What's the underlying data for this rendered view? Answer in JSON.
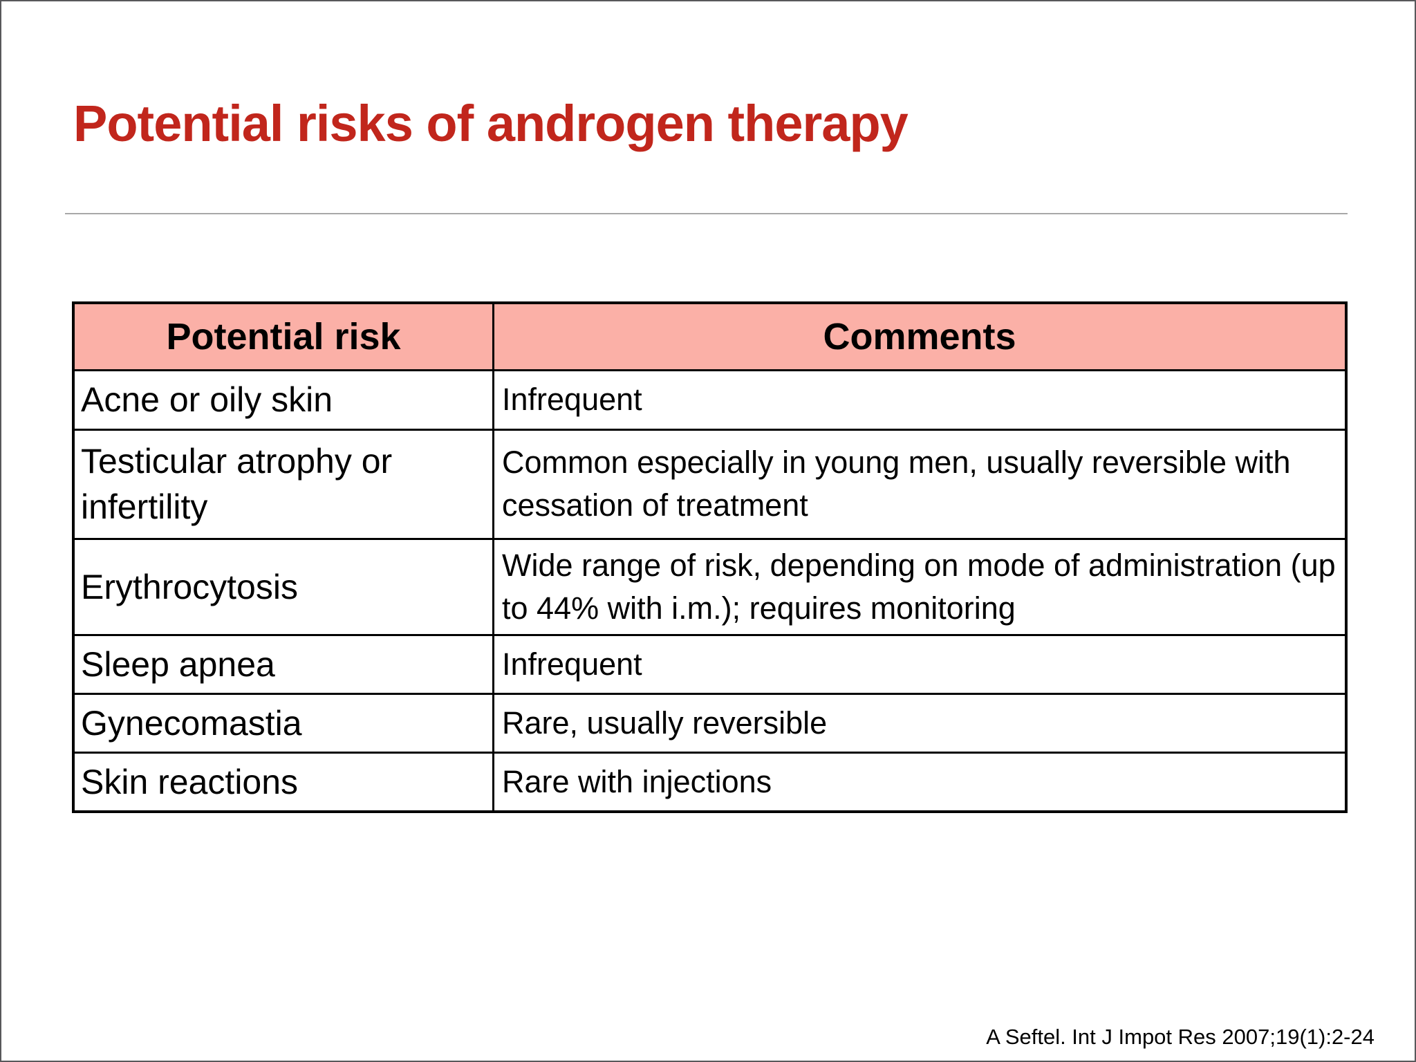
{
  "page": {
    "title": "Potential risks of androgen therapy",
    "citation": "A Seftel. Int J Impot Res 2007;19(1):2-24"
  },
  "colors": {
    "title_red": "#c1261c",
    "header_pink": "#fbb0a7",
    "table_border": "#000000",
    "rule_gray": "#a8a8a8",
    "page_border_gray": "#58585a"
  },
  "table": {
    "headers": [
      "Potential risk",
      "Comments"
    ],
    "rows": [
      {
        "risk": "Acne or oily skin",
        "comment": "Infrequent"
      },
      {
        "risk": "Testicular atrophy or infertility",
        "comment": "Common especially in young men, usually reversible with cessation of treatment"
      },
      {
        "risk": "Erythrocytosis",
        "comment": "Wide range of risk, depending on mode of administration (up to 44% with i.m.); requires monitoring"
      },
      {
        "risk": "Sleep apnea",
        "comment": "Infrequent"
      },
      {
        "risk": "Gynecomastia",
        "comment": "Rare, usually reversible"
      },
      {
        "risk": "Skin reactions",
        "comment": "Rare with injections"
      }
    ]
  }
}
